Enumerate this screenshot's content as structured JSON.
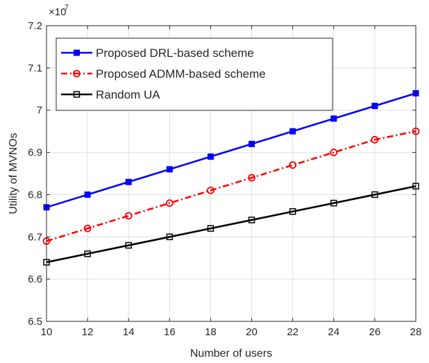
{
  "chart_data": {
    "type": "line",
    "title": "",
    "xlabel": "Number of users",
    "ylabel": "Utility of MVNOs",
    "y_multiplier": {
      "base": "×10",
      "exponent": "7"
    },
    "x": [
      10,
      12,
      14,
      16,
      18,
      20,
      22,
      24,
      26,
      28
    ],
    "xlim": [
      10,
      28
    ],
    "ylim": [
      6.5,
      7.2
    ],
    "xticks": [
      "10",
      "12",
      "14",
      "16",
      "18",
      "20",
      "22",
      "24",
      "26",
      "28"
    ],
    "yticks": [
      "6.5",
      "6.6",
      "6.7",
      "6.8",
      "6.9",
      "7",
      "7.1",
      "7.2"
    ],
    "grid": true,
    "legend_position": "top-left",
    "series": [
      {
        "name": "Proposed DRL-based scheme",
        "color": "#0000ff",
        "marker": "filled-square",
        "line_style": "solid",
        "values": [
          6.77,
          6.8,
          6.83,
          6.86,
          6.89,
          6.92,
          6.95,
          6.98,
          7.01,
          7.04
        ]
      },
      {
        "name": "Proposed ADMM-based scheme",
        "color": "#ff0000",
        "marker": "open-circle",
        "line_style": "dash-dot",
        "values": [
          6.69,
          6.72,
          6.75,
          6.78,
          6.81,
          6.84,
          6.87,
          6.9,
          6.93,
          6.95
        ]
      },
      {
        "name": "Random UA",
        "color": "#000000",
        "marker": "open-square",
        "line_style": "solid",
        "values": [
          6.64,
          6.66,
          6.68,
          6.7,
          6.72,
          6.74,
          6.76,
          6.78,
          6.8,
          6.82
        ]
      }
    ]
  }
}
